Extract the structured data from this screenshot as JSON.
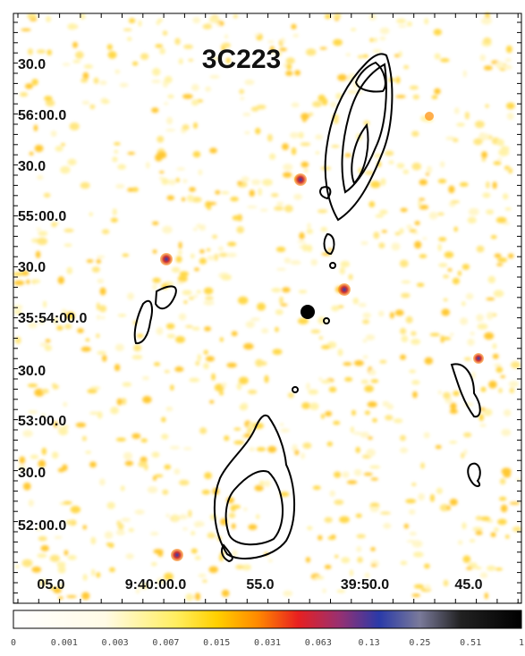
{
  "title": "3C223",
  "y_axis_labels": [
    "30.0",
    "56:00.0",
    "30.0",
    "55:00.0",
    "30.0",
    "35:54:00.0",
    "30.0",
    "53:00.0",
    "30.0",
    "52:00.0"
  ],
  "x_axis_labels": [
    "05.0",
    "9:40:00.0",
    "55.0",
    "39:50.0",
    "45.0"
  ],
  "colorbar": {
    "ticks": [
      "0",
      "0.001",
      "0.003",
      "0.007",
      "0.015",
      "0.031",
      "0.063",
      "0.13",
      "0.25",
      "0.51",
      "1"
    ]
  }
}
